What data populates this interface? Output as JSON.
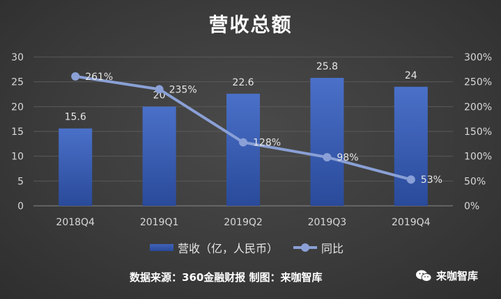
{
  "chart_data": {
    "type": "bar",
    "title": "营收总额",
    "categories": [
      "2018Q4",
      "2019Q1",
      "2019Q2",
      "2019Q3",
      "2019Q4"
    ],
    "series": [
      {
        "name": "营收（亿，人民币）",
        "type": "bar",
        "axis": "left",
        "values": [
          15.6,
          20,
          22.6,
          25.8,
          24
        ],
        "labels": [
          "15.6",
          "20",
          "22.6",
          "25.8",
          "24"
        ]
      },
      {
        "name": "同比",
        "type": "line",
        "axis": "right",
        "values": [
          261,
          235,
          128,
          98,
          53
        ],
        "labels": [
          "261%",
          "235%",
          "128%",
          "98%",
          "53%"
        ]
      }
    ],
    "ylim": [
      0,
      30
    ],
    "y_ticks": [
      "0",
      "5",
      "10",
      "15",
      "20",
      "25",
      "30"
    ],
    "y2lim": [
      0,
      300
    ],
    "y2_ticks": [
      "0%",
      "50%",
      "100%",
      "150%",
      "200%",
      "250%",
      "300%"
    ],
    "grid": true,
    "legend_position": "bottom",
    "colors": {
      "bar": "#3a5fb5",
      "line": "#8aa0d6"
    }
  },
  "footer": {
    "source": "数据来源：360金融财报 制图：来咖智库",
    "brand": "来咖智库",
    "brand_icon": "wechat-icon"
  }
}
